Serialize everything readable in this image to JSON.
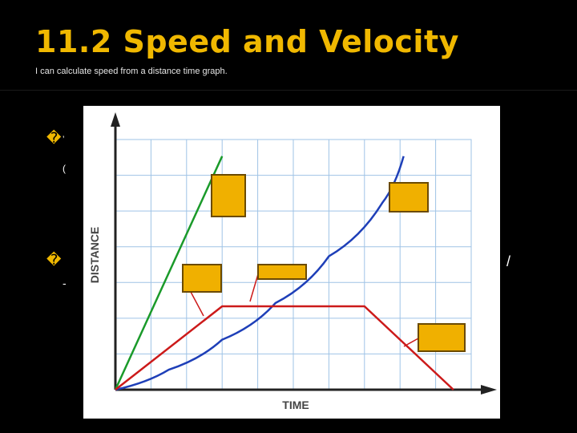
{
  "slide": {
    "title": "11.2 Speed and Velocity",
    "subtitle": "I can calculate speed from a distance time graph."
  },
  "bullets": [
    {
      "icon": "bullet-icon",
      "glyph": "�"
    },
    {
      "icon": "bullet-icon",
      "glyph": "�"
    }
  ],
  "fragments": {
    "left1": "’",
    "left2": "(",
    "left3": "-",
    "right1": "/"
  },
  "colors": {
    "accent": "#f0b800",
    "label_box": "#f0b000",
    "green": "#1a9a2a",
    "blue": "#1e3fb8",
    "red": "#cc1a1a",
    "grid": "#9fc3e6"
  },
  "chart_data": {
    "type": "line",
    "xlabel": "TIME",
    "ylabel": "DISTANCE",
    "grid": true,
    "series": [
      {
        "color": "#1a9a2a",
        "points": [
          [
            0,
            0
          ],
          [
            3,
            7
          ]
        ]
      },
      {
        "color": "#1e3fb8",
        "points": [
          [
            0,
            0
          ],
          [
            1.5,
            0.6
          ],
          [
            3,
            1.5
          ],
          [
            4.5,
            2.6
          ],
          [
            6,
            4
          ],
          [
            7.5,
            5.6
          ],
          [
            8.1,
            7
          ]
        ]
      },
      {
        "color": "#cc1a1a",
        "points": [
          [
            0,
            0
          ],
          [
            3,
            2.5
          ],
          [
            7,
            2.5
          ],
          [
            9.5,
            0
          ]
        ]
      }
    ],
    "xlim": [
      0,
      10
    ],
    "ylim": [
      0,
      7.5
    ]
  }
}
